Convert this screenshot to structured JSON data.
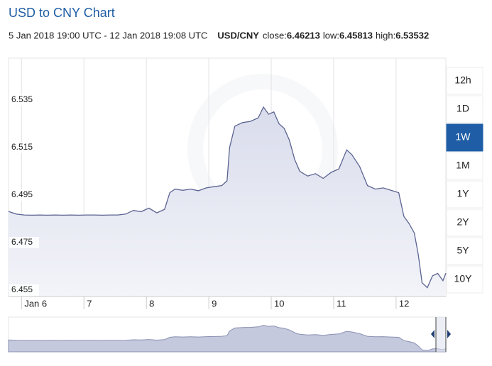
{
  "chart_data": {
    "type": "area",
    "title": "USD to CNY Chart",
    "period": "5 Jan 2018 19:00 UTC - 12 Jan 2018 19:08 UTC",
    "pair": "USD/CNY",
    "close_label": "close:",
    "close": 6.46213,
    "low_label": "low:",
    "low": 6.45813,
    "high_label": "high:",
    "high": 6.53532,
    "x": [
      0,
      3,
      6,
      9,
      12,
      15,
      18,
      21,
      24,
      27,
      30,
      33,
      36,
      39,
      42,
      45,
      48,
      51,
      54,
      57,
      60,
      62,
      64,
      67,
      70,
      73,
      76,
      79,
      82,
      84,
      85,
      87,
      90,
      93,
      96,
      98,
      100,
      102,
      104,
      106,
      108,
      110,
      112,
      115,
      118,
      121,
      124,
      127,
      130,
      132,
      135,
      138,
      141,
      144,
      147,
      150,
      152,
      154,
      156,
      157.5,
      159,
      161,
      163,
      165,
      167,
      168.13
    ],
    "values": [
      6.4881,
      6.487,
      6.4866,
      6.4865,
      6.4866,
      6.4865,
      6.4866,
      6.4865,
      6.4866,
      6.4865,
      6.4866,
      6.4866,
      6.4865,
      6.4866,
      6.4866,
      6.487,
      6.4885,
      6.488,
      6.4895,
      6.4875,
      6.489,
      6.496,
      6.4975,
      6.497,
      6.4975,
      6.4968,
      6.498,
      6.4985,
      6.499,
      6.501,
      6.515,
      6.524,
      6.5255,
      6.526,
      6.5275,
      6.532,
      6.529,
      6.53,
      6.525,
      6.523,
      6.518,
      6.51,
      6.505,
      6.503,
      6.504,
      6.502,
      6.5045,
      6.506,
      6.514,
      6.512,
      6.507,
      6.499,
      6.4975,
      6.498,
      6.497,
      6.496,
      6.486,
      6.483,
      6.479,
      6.47,
      6.4581,
      6.456,
      6.461,
      6.462,
      6.459,
      6.46213
    ],
    "color": "#5b6491",
    "fill": "#e4e6f1",
    "xlim": [
      0,
      168.13
    ],
    "xticks": [
      {
        "value": 5,
        "label": "Jan 6"
      },
      {
        "value": 29,
        "label": "7"
      },
      {
        "value": 53,
        "label": "8"
      },
      {
        "value": 77,
        "label": "9"
      },
      {
        "value": 101,
        "label": "10"
      },
      {
        "value": 125,
        "label": "11"
      },
      {
        "value": 149,
        "label": "12"
      }
    ],
    "ylim": [
      6.4523,
      6.5526
    ],
    "yticks": [
      6.455,
      6.475,
      6.495,
      6.515,
      6.535
    ],
    "grid": "x",
    "ranges": [
      "12h",
      "1D",
      "1W",
      "1M",
      "1Y",
      "2Y",
      "5Y",
      "10Y"
    ],
    "selected_range": "1W"
  }
}
